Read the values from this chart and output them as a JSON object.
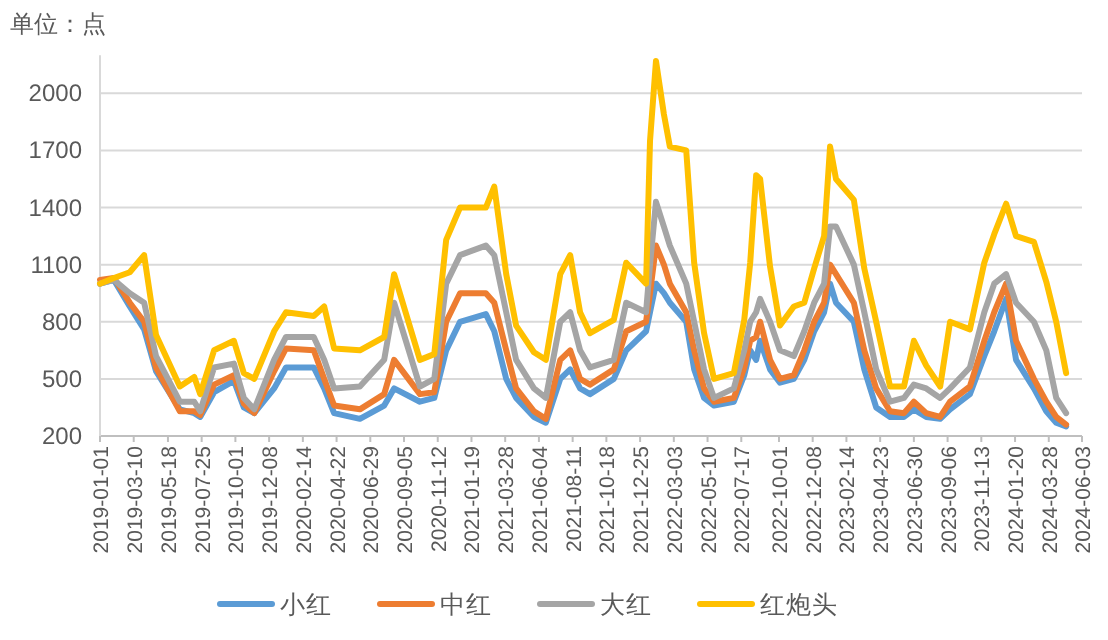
{
  "chart_data": {
    "type": "line",
    "ylabel": "单位：点",
    "x": [
      "2019-01-01",
      "2019-01-29",
      "2019-03-02",
      "2019-03-31",
      "2019-04-24",
      "2019-06-11",
      "2019-07-10",
      "2019-07-22",
      "2019-08-19",
      "2019-09-28",
      "2019-10-18",
      "2019-11-08",
      "2019-12-18",
      "2020-01-11",
      "2020-03-07",
      "2020-03-28",
      "2020-04-17",
      "2020-06-08",
      "2020-07-27",
      "2020-08-16",
      "2020-10-07",
      "2020-11-05",
      "2020-11-29",
      "2020-12-27",
      "2021-02-17",
      "2021-03-06",
      "2021-03-30",
      "2021-04-19",
      "2021-05-25",
      "2021-06-18",
      "2021-07-17",
      "2021-08-06",
      "2021-08-26",
      "2021-09-15",
      "2021-11-02",
      "2021-11-27",
      "2022-01-06",
      "2022-01-14",
      "2022-01-26",
      "2022-02-11",
      "2022-02-23",
      "2022-03-28",
      "2022-04-13",
      "2022-05-03",
      "2022-05-23",
      "2022-07-02",
      "2022-07-23",
      "2022-08-04",
      "2022-08-16",
      "2022-08-24",
      "2022-09-13",
      "2022-10-03",
      "2022-10-31",
      "2022-11-21",
      "2022-12-11",
      "2022-12-31",
      "2023-01-12",
      "2023-01-24",
      "2023-03-01",
      "2023-03-22",
      "2023-04-15",
      "2023-05-13",
      "2023-06-10",
      "2023-06-30",
      "2023-07-25",
      "2023-08-22",
      "2023-09-11",
      "2023-10-21",
      "2023-11-19",
      "2023-12-09",
      "2024-01-02",
      "2024-01-22",
      "2024-02-27",
      "2024-03-23",
      "2024-04-12",
      "2024-05-02"
    ],
    "series": [
      {
        "name": "小红",
        "color": "#5b9bd5",
        "values": [
          1000,
          1020,
          880,
          760,
          540,
          340,
          320,
          300,
          430,
          490,
          350,
          320,
          450,
          560,
          560,
          450,
          320,
          290,
          360,
          450,
          380,
          400,
          650,
          800,
          840,
          750,
          500,
          400,
          300,
          270,
          500,
          550,
          450,
          420,
          500,
          650,
          750,
          850,
          1000,
          950,
          900,
          800,
          550,
          400,
          360,
          380,
          520,
          650,
          600,
          700,
          550,
          480,
          500,
          600,
          750,
          850,
          1000,
          900,
          800,
          550,
          350,
          300,
          300,
          340,
          300,
          290,
          340,
          420,
          620,
          750,
          920,
          600,
          450,
          330,
          270,
          250
        ]
      },
      {
        "name": "中红",
        "color": "#ed7d31",
        "values": [
          1020,
          1030,
          900,
          800,
          560,
          330,
          330,
          310,
          470,
          520,
          370,
          320,
          540,
          660,
          650,
          500,
          360,
          340,
          420,
          600,
          420,
          430,
          800,
          950,
          950,
          900,
          650,
          450,
          330,
          290,
          600,
          650,
          500,
          470,
          550,
          750,
          800,
          950,
          1200,
          1100,
          1000,
          850,
          650,
          450,
          380,
          400,
          560,
          700,
          720,
          800,
          600,
          500,
          520,
          650,
          800,
          900,
          1100,
          1050,
          900,
          650,
          450,
          330,
          320,
          380,
          320,
          300,
          380,
          460,
          700,
          850,
          1000,
          700,
          500,
          380,
          300,
          260
        ]
      },
      {
        "name": "大红",
        "color": "#a5a5a5",
        "values": [
          1000,
          1020,
          950,
          900,
          620,
          380,
          380,
          330,
          560,
          580,
          400,
          340,
          600,
          720,
          720,
          600,
          450,
          460,
          600,
          900,
          460,
          500,
          1000,
          1150,
          1200,
          1150,
          850,
          600,
          450,
          400,
          800,
          850,
          650,
          560,
          600,
          900,
          850,
          1100,
          1430,
          1300,
          1200,
          1000,
          800,
          550,
          400,
          450,
          650,
          800,
          850,
          920,
          800,
          650,
          620,
          750,
          900,
          1000,
          1300,
          1300,
          1100,
          850,
          550,
          380,
          400,
          470,
          450,
          400,
          450,
          560,
          850,
          1000,
          1050,
          900,
          800,
          650,
          400,
          320
        ]
      },
      {
        "name": "红炮头",
        "color": "#ffc000",
        "values": [
          1000,
          1030,
          1060,
          1150,
          730,
          460,
          510,
          420,
          650,
          700,
          530,
          500,
          750,
          850,
          830,
          880,
          660,
          650,
          720,
          1050,
          600,
          630,
          1230,
          1400,
          1400,
          1510,
          1050,
          780,
          640,
          600,
          1050,
          1150,
          850,
          740,
          810,
          1110,
          1000,
          1750,
          2170,
          1890,
          1720,
          1700,
          1110,
          740,
          500,
          530,
          810,
          1110,
          1570,
          1550,
          1090,
          780,
          880,
          900,
          1080,
          1250,
          1720,
          1550,
          1440,
          1080,
          800,
          460,
          460,
          700,
          570,
          460,
          800,
          760,
          1110,
          1260,
          1420,
          1250,
          1220,
          1010,
          800,
          530
        ]
      }
    ],
    "xlim": [
      "2019-01-01",
      "2024-06-03"
    ],
    "xticks": [
      "2019-01-01",
      "2019-03-10",
      "2019-05-18",
      "2019-07-25",
      "2019-10-01",
      "2019-12-08",
      "2020-02-14",
      "2020-04-22",
      "2020-06-29",
      "2020-09-05",
      "2020-11-12",
      "2021-01-19",
      "2021-03-28",
      "2021-06-04",
      "2021-08-11",
      "2021-10-18",
      "2021-12-25",
      "2022-03-03",
      "2022-05-10",
      "2022-07-17",
      "2022-10-01",
      "2022-12-08",
      "2023-02-14",
      "2023-04-23",
      "2023-06-30",
      "2023-09-06",
      "2023-11-13",
      "2024-01-20",
      "2024-03-28",
      "2024-06-03"
    ],
    "ylim": [
      200,
      2200
    ],
    "yticks": [
      200,
      500,
      800,
      1100,
      1400,
      1700,
      2000
    ],
    "grid": "y",
    "legend": "bottom"
  }
}
